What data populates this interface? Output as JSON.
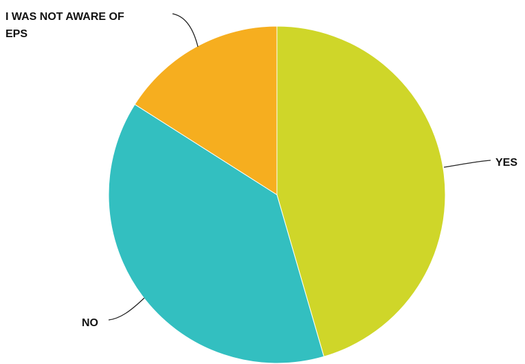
{
  "chart_data": {
    "type": "pie",
    "start_angle_deg": 0,
    "direction": "clockwise",
    "slices": [
      {
        "label": "YES",
        "label_lines": [
          "YES"
        ],
        "value": 45.5,
        "color": "#cfd629"
      },
      {
        "label": "NO",
        "label_lines": [
          "NO"
        ],
        "value": 38.5,
        "color": "#33bfc0"
      },
      {
        "label": "I WAS NOT AWARE OF EPS",
        "label_lines": [
          "I WAS NOT AWARE OF",
          "EPS"
        ],
        "value": 16.0,
        "color": "#f6ae1f"
      }
    ],
    "legend": "none"
  }
}
